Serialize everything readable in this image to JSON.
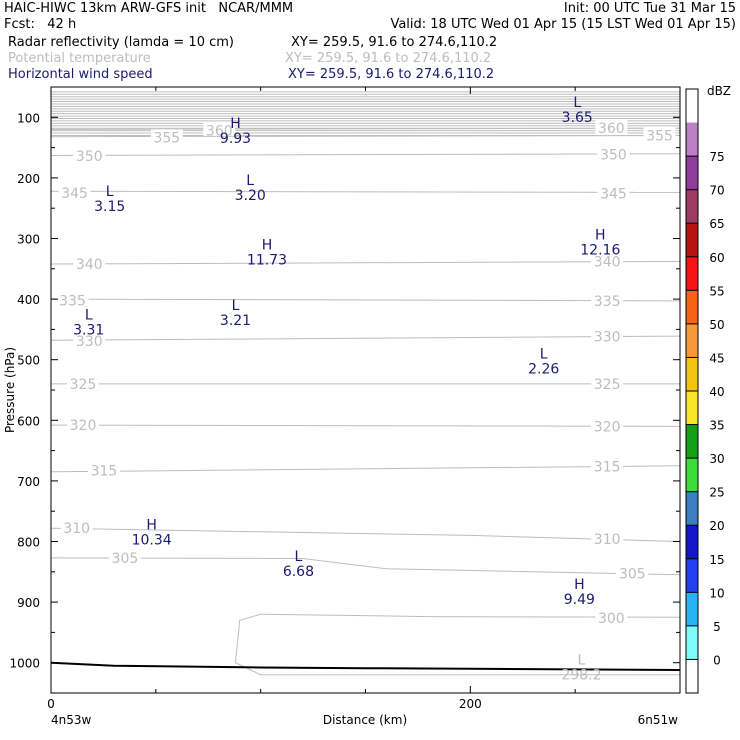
{
  "header": {
    "line1_left": "HAIC-HIWC 13km ARW-GFS init   NCAR/MMM",
    "line1_right": "Init: 00 UTC Tue 31 Mar 15",
    "line2_left": "Fcst:   42 h",
    "line2_right": "Valid: 18 UTC Wed 01 Apr 15 (15 LST Wed 01 Apr 15)",
    "fields": [
      {
        "name": "Radar reflectivity (lamda = 10 cm)",
        "xy": "XY= 259.5, 91.6 to 274.6,110.2",
        "color": "#000000"
      },
      {
        "name": "Potential temperature",
        "xy": "XY= 259.5, 91.6 to 274.6,110.2",
        "color": "#bdbdbd"
      },
      {
        "name": "Horizontal wind speed",
        "xy": "XY= 259.5, 91.6 to 274.6,110.2",
        "color": "#1a1a6e"
      }
    ]
  },
  "chart_data": {
    "type": "line",
    "xlabel": "Distance (km)",
    "ylabel": "Pressure (hPa)",
    "xlim": [
      0,
      300
    ],
    "ylim": [
      1050,
      50
    ],
    "x_ticks": [
      {
        "v": 0,
        "label": "0"
      },
      {
        "v": 200,
        "label": "200"
      }
    ],
    "x_end_labels": {
      "left": "4n53w",
      "right": "6n51w"
    },
    "y_ticks": [
      {
        "v": 100,
        "label": "100"
      },
      {
        "v": 200,
        "label": "200"
      },
      {
        "v": 300,
        "label": "300"
      },
      {
        "v": 400,
        "label": "400"
      },
      {
        "v": 500,
        "label": "500"
      },
      {
        "v": 600,
        "label": "600"
      },
      {
        "v": 700,
        "label": "700"
      },
      {
        "v": 800,
        "label": "800"
      },
      {
        "v": 900,
        "label": "900"
      },
      {
        "v": 1000,
        "label": "1000"
      }
    ],
    "series": [
      {
        "name": "Potential temperature",
        "color": "#bdbdbd",
        "contours": [
          {
            "label": "360",
            "pts": [
              [
                0,
                120
              ],
              [
                300,
                118
              ]
            ],
            "labels_at": [
              [
                65,
                122
              ],
              [
                252,
                118
              ]
            ]
          },
          {
            "label": "355",
            "pts": [
              [
                0,
                132
              ],
              [
                300,
                130
              ]
            ],
            "labels_at": [
              [
                40,
                133
              ],
              [
                275,
                130
              ]
            ]
          },
          {
            "label": "350",
            "pts": [
              [
                0,
                163
              ],
              [
                300,
                160
              ]
            ],
            "labels_at": [
              [
                3,
                164
              ],
              [
                253,
                161
              ]
            ]
          },
          {
            "label": "345",
            "pts": [
              [
                0,
                222
              ],
              [
                300,
                224
              ]
            ],
            "labels_at": [
              [
                -4,
                225
              ],
              [
                253,
                226
              ]
            ]
          },
          {
            "label": "340",
            "pts": [
              [
                0,
                342
              ],
              [
                300,
                338
              ]
            ],
            "labels_at": [
              [
                3,
                342
              ],
              [
                250,
                338
              ]
            ]
          },
          {
            "label": "335",
            "pts": [
              [
                0,
                400
              ],
              [
                300,
                403
              ]
            ],
            "labels_at": [
              [
                -5,
                402
              ],
              [
                250,
                403
              ]
            ]
          },
          {
            "label": "330",
            "pts": [
              [
                0,
                468
              ],
              [
                300,
                461
              ]
            ],
            "labels_at": [
              [
                3,
                469
              ],
              [
                250,
                462
              ]
            ]
          },
          {
            "label": "325",
            "pts": [
              [
                0,
                540
              ],
              [
                300,
                540
              ]
            ],
            "labels_at": [
              [
                0,
                540
              ],
              [
                250,
                540
              ]
            ]
          },
          {
            "label": "320",
            "pts": [
              [
                0,
                608
              ],
              [
                300,
                610
              ]
            ],
            "labels_at": [
              [
                0,
                608
              ],
              [
                250,
                610
              ]
            ]
          },
          {
            "label": "315",
            "pts": [
              [
                0,
                685
              ],
              [
                300,
                675
              ]
            ],
            "labels_at": [
              [
                10,
                683
              ],
              [
                250,
                676
              ]
            ]
          },
          {
            "label": "310",
            "pts": [
              [
                0,
                778
              ],
              [
                200,
                790
              ],
              [
                300,
                800
              ]
            ],
            "labels_at": [
              [
                -3,
                778
              ],
              [
                250,
                796
              ]
            ]
          },
          {
            "label": "305",
            "pts": [
              [
                0,
                827
              ],
              [
                120,
                828
              ],
              [
                160,
                845
              ],
              [
                300,
                855
              ]
            ],
            "labels_at": [
              [
                20,
                827
              ],
              [
                262,
                853
              ]
            ]
          },
          {
            "label": "300",
            "pts": [
              [
                300,
                925
              ],
              [
                180,
                924
              ],
              [
                100,
                920
              ],
              [
                90,
                930
              ],
              [
                88,
                1000
              ],
              [
                100,
                1020
              ],
              [
                300,
                1020
              ]
            ],
            "labels_at": [
              [
                252,
                926
              ]
            ]
          }
        ],
        "top_band": {
          "from": 58,
          "to": 130,
          "spacing": 4
        }
      },
      {
        "name": "Horizontal wind speed",
        "color": "#1a1a6e"
      }
    ],
    "extrema": [
      {
        "type": "H",
        "value": "9.93",
        "x": 88,
        "p": 118,
        "color": "#1a1a6e"
      },
      {
        "type": "L",
        "value": "3.65",
        "x": 251,
        "p": 83,
        "color": "#1a1a6e"
      },
      {
        "type": "L",
        "value": "3.15",
        "x": 28,
        "p": 230,
        "color": "#1a1a6e"
      },
      {
        "type": "L",
        "value": "3.20",
        "x": 95,
        "p": 212,
        "color": "#1a1a6e"
      },
      {
        "type": "H",
        "value": "12.16",
        "x": 262,
        "p": 302,
        "color": "#1a1a6e"
      },
      {
        "type": "H",
        "value": "11.73",
        "x": 103,
        "p": 318,
        "color": "#1a1a6e"
      },
      {
        "type": "L",
        "value": "3.31",
        "x": 18,
        "p": 434,
        "color": "#1a1a6e"
      },
      {
        "type": "L",
        "value": "3.21",
        "x": 88,
        "p": 418,
        "color": "#1a1a6e"
      },
      {
        "type": "L",
        "value": "2.26",
        "x": 235,
        "p": 498,
        "color": "#1a1a6e"
      },
      {
        "type": "H",
        "value": "10.34",
        "x": 48,
        "p": 780,
        "color": "#1a1a6e"
      },
      {
        "type": "L",
        "value": "6.68",
        "x": 118,
        "p": 832,
        "color": "#1a1a6e"
      },
      {
        "type": "H",
        "value": "9.49",
        "x": 252,
        "p": 878,
        "color": "#1a1a6e"
      },
      {
        "type": "L",
        "value": "298.2",
        "x": 253,
        "p": 1003,
        "color": "#bdbdbd"
      }
    ],
    "terrain": {
      "color": "#000000",
      "pts": [
        [
          0,
          1000
        ],
        [
          30,
          1005
        ],
        [
          100,
          1008
        ],
        [
          150,
          1009
        ],
        [
          200,
          1010
        ],
        [
          300,
          1012
        ]
      ]
    },
    "colorbar": {
      "title": "dBZ",
      "levels": [
        "0",
        "5",
        "10",
        "15",
        "20",
        "25",
        "30",
        "35",
        "40",
        "45",
        "50",
        "55",
        "60",
        "65",
        "70",
        "75"
      ],
      "colors": [
        "#ffffff",
        "#7ff9f9",
        "#28b4f2",
        "#2440ee",
        "#1416c8",
        "#3b7fc0",
        "#3cdc3c",
        "#14a014",
        "#f8e428",
        "#f4c414",
        "#f49a3c",
        "#f46414",
        "#f41414",
        "#b41414",
        "#9c3c64",
        "#903c9c",
        "#bc80c4",
        "#ffffff"
      ]
    }
  }
}
